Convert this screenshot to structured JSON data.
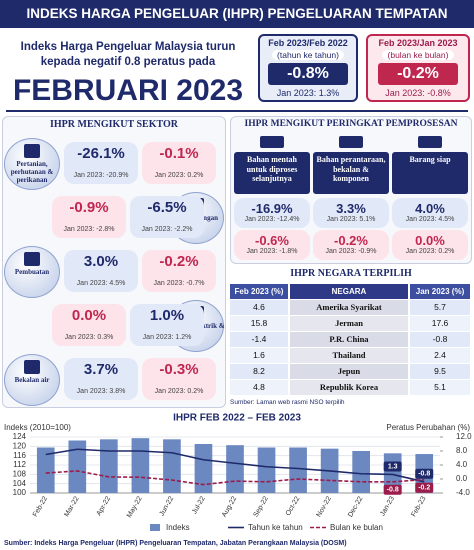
{
  "header": {
    "title": "INDEKS HARGA PENGELUAR (IHPR) PENGELUARAN TEMPATAN"
  },
  "intro": {
    "text": "Indeks Harga Pengeluar Malaysia turun kepada negatif 0.8 peratus pada",
    "period": "FEBRUARI 2023"
  },
  "summary": {
    "yoy": {
      "period": "Feb 2023/Feb 2022",
      "basis": "(tahun ke tahun)",
      "value": "-0.8%",
      "previous": "Jan 2023: 1.3%"
    },
    "mom": {
      "period": "Feb 2023/Jan 2023",
      "basis": "(bulan ke bulan)",
      "value": "-0.2%",
      "previous": "Jan 2023: -0.8%"
    }
  },
  "sectors": {
    "title": "IHPR MENGIKUT SEKTOR",
    "items": [
      {
        "name": "Pertanian, perhutanan & perikanan",
        "yoy": {
          "value": "-26.1%",
          "previous": "Jan 2023: -20.9%"
        },
        "mom": {
          "value": "-0.1%",
          "previous": "Jan 2023: 0.2%"
        }
      },
      {
        "name": "Perlombongan",
        "yoy": {
          "value": "-6.5%",
          "previous": "Jan 2023: -2.2%"
        },
        "mom": {
          "value": "-0.9%",
          "previous": "Jan 2023: -2.8%"
        }
      },
      {
        "name": "Pembuatan",
        "yoy": {
          "value": "3.0%",
          "previous": "Jan 2023: 4.5%"
        },
        "mom": {
          "value": "-0.2%",
          "previous": "Jan 2023: -0.7%"
        }
      },
      {
        "name": "Bekalan elektrik & gas",
        "yoy": {
          "value": "1.0%",
          "previous": "Jan 2023: 1.2%"
        },
        "mom": {
          "value": "0.0%",
          "previous": "Jan 2023: 0.3%"
        }
      },
      {
        "name": "Bekalan air",
        "yoy": {
          "value": "3.7%",
          "previous": "Jan 2023: 3.8%"
        },
        "mom": {
          "value": "-0.3%",
          "previous": "Jan 2023: 0.2%"
        }
      }
    ]
  },
  "stages": {
    "title": "IHPR MENGIKUT PERINGKAT PEMPROSESAN",
    "items": [
      {
        "name": "Bahan mentah untuk diproses selanjutnya",
        "yoy": {
          "value": "-16.9%",
          "previous": "Jan 2023: -12.4%"
        },
        "mom": {
          "value": "-0.6%",
          "previous": "Jan 2023: -1.8%"
        }
      },
      {
        "name": "Bahan perantaraan, bekalan & komponen",
        "yoy": {
          "value": "3.3%",
          "previous": "Jan 2023: 5.1%"
        },
        "mom": {
          "value": "-0.2%",
          "previous": "Jan 2023: -0.9%"
        }
      },
      {
        "name": "Barang siap",
        "yoy": {
          "value": "4.0%",
          "previous": "Jan 2023: 4.5%"
        },
        "mom": {
          "value": "0.0%",
          "previous": "Jan 2023: 0.2%"
        }
      }
    ]
  },
  "countries": {
    "title": "IHPR NEGARA TERPILIH",
    "columns": [
      "Feb 2023 (%)",
      "NEGARA",
      "Jan 2023 (%)"
    ],
    "rows": [
      [
        "4.6",
        "Amerika Syarikat",
        "5.7"
      ],
      [
        "15.8",
        "Jerman",
        "17.6"
      ],
      [
        "-1.4",
        "P.R. China",
        "-0.8"
      ],
      [
        "1.6",
        "Thailand",
        "2.4"
      ],
      [
        "8.2",
        "Jepun",
        "9.5"
      ],
      [
        "4.8",
        "Republik Korea",
        "5.1"
      ]
    ],
    "source": "Sumber: Laman web rasmi NSO terpilih"
  },
  "chart_data": {
    "type": "bar",
    "title": "IHPR FEB 2022 – FEB 2023",
    "y_label": "Indeks (2010=100)",
    "y2_label": "Peratus Perubahan (%)",
    "categories": [
      "Feb-22",
      "Mar-22",
      "Apr-22",
      "May-22",
      "Jun-22",
      "Jul-22",
      "Aug-22",
      "Sep-22",
      "Oct-22",
      "Nov-22",
      "Dec-22",
      "Jan-23",
      "Feb-23"
    ],
    "ylim": [
      100,
      124
    ],
    "yticks": [
      100,
      104,
      108,
      112,
      116,
      120,
      124
    ],
    "y2lim": [
      -4,
      12
    ],
    "y2ticks": [
      {
        "value": -4,
        "label": "-4.0"
      },
      {
        "value": 0,
        "label": "0.0"
      },
      {
        "value": 4,
        "label": "4.0"
      },
      {
        "value": 8,
        "label": "8.0"
      },
      {
        "value": 12,
        "label": "12.0"
      }
    ],
    "grid": true,
    "series": [
      {
        "name": "Indeks",
        "type": "bar",
        "color": "#6b88c0",
        "values": [
          119.5,
          122.5,
          123.0,
          123.5,
          123.0,
          121.0,
          120.5,
          119.5,
          119.5,
          119.0,
          118.0,
          117.0,
          116.7
        ]
      },
      {
        "name": "Tahun ke tahun",
        "type": "line",
        "axis": "y2",
        "color": "#1f2a6b",
        "values": [
          7.0,
          8.5,
          8.0,
          8.0,
          7.5,
          5.5,
          4.5,
          3.5,
          3.0,
          2.3,
          1.5,
          1.3,
          -0.8
        ],
        "value_labels": [
          null,
          null,
          null,
          null,
          null,
          null,
          null,
          null,
          null,
          null,
          null,
          "1.3",
          "-0.8"
        ]
      },
      {
        "name": "Bulan ke bulan",
        "type": "line",
        "axis": "y2",
        "dashed": true,
        "color": "#9b1b4a",
        "values": [
          1.7,
          2.3,
          0.6,
          0.5,
          -0.3,
          -1.6,
          -0.6,
          -0.8,
          0.0,
          -0.4,
          -0.8,
          -0.8,
          -0.2
        ],
        "value_labels": [
          null,
          null,
          null,
          null,
          null,
          null,
          null,
          null,
          null,
          null,
          null,
          "-0.8",
          "-0.2"
        ]
      }
    ]
  },
  "footer": {
    "source": "Sumber: Indeks Harga Pengeluar (IHPR) Pengeluaran Tempatan, Jabatan Perangkaan Malaysia (DOSM)"
  }
}
